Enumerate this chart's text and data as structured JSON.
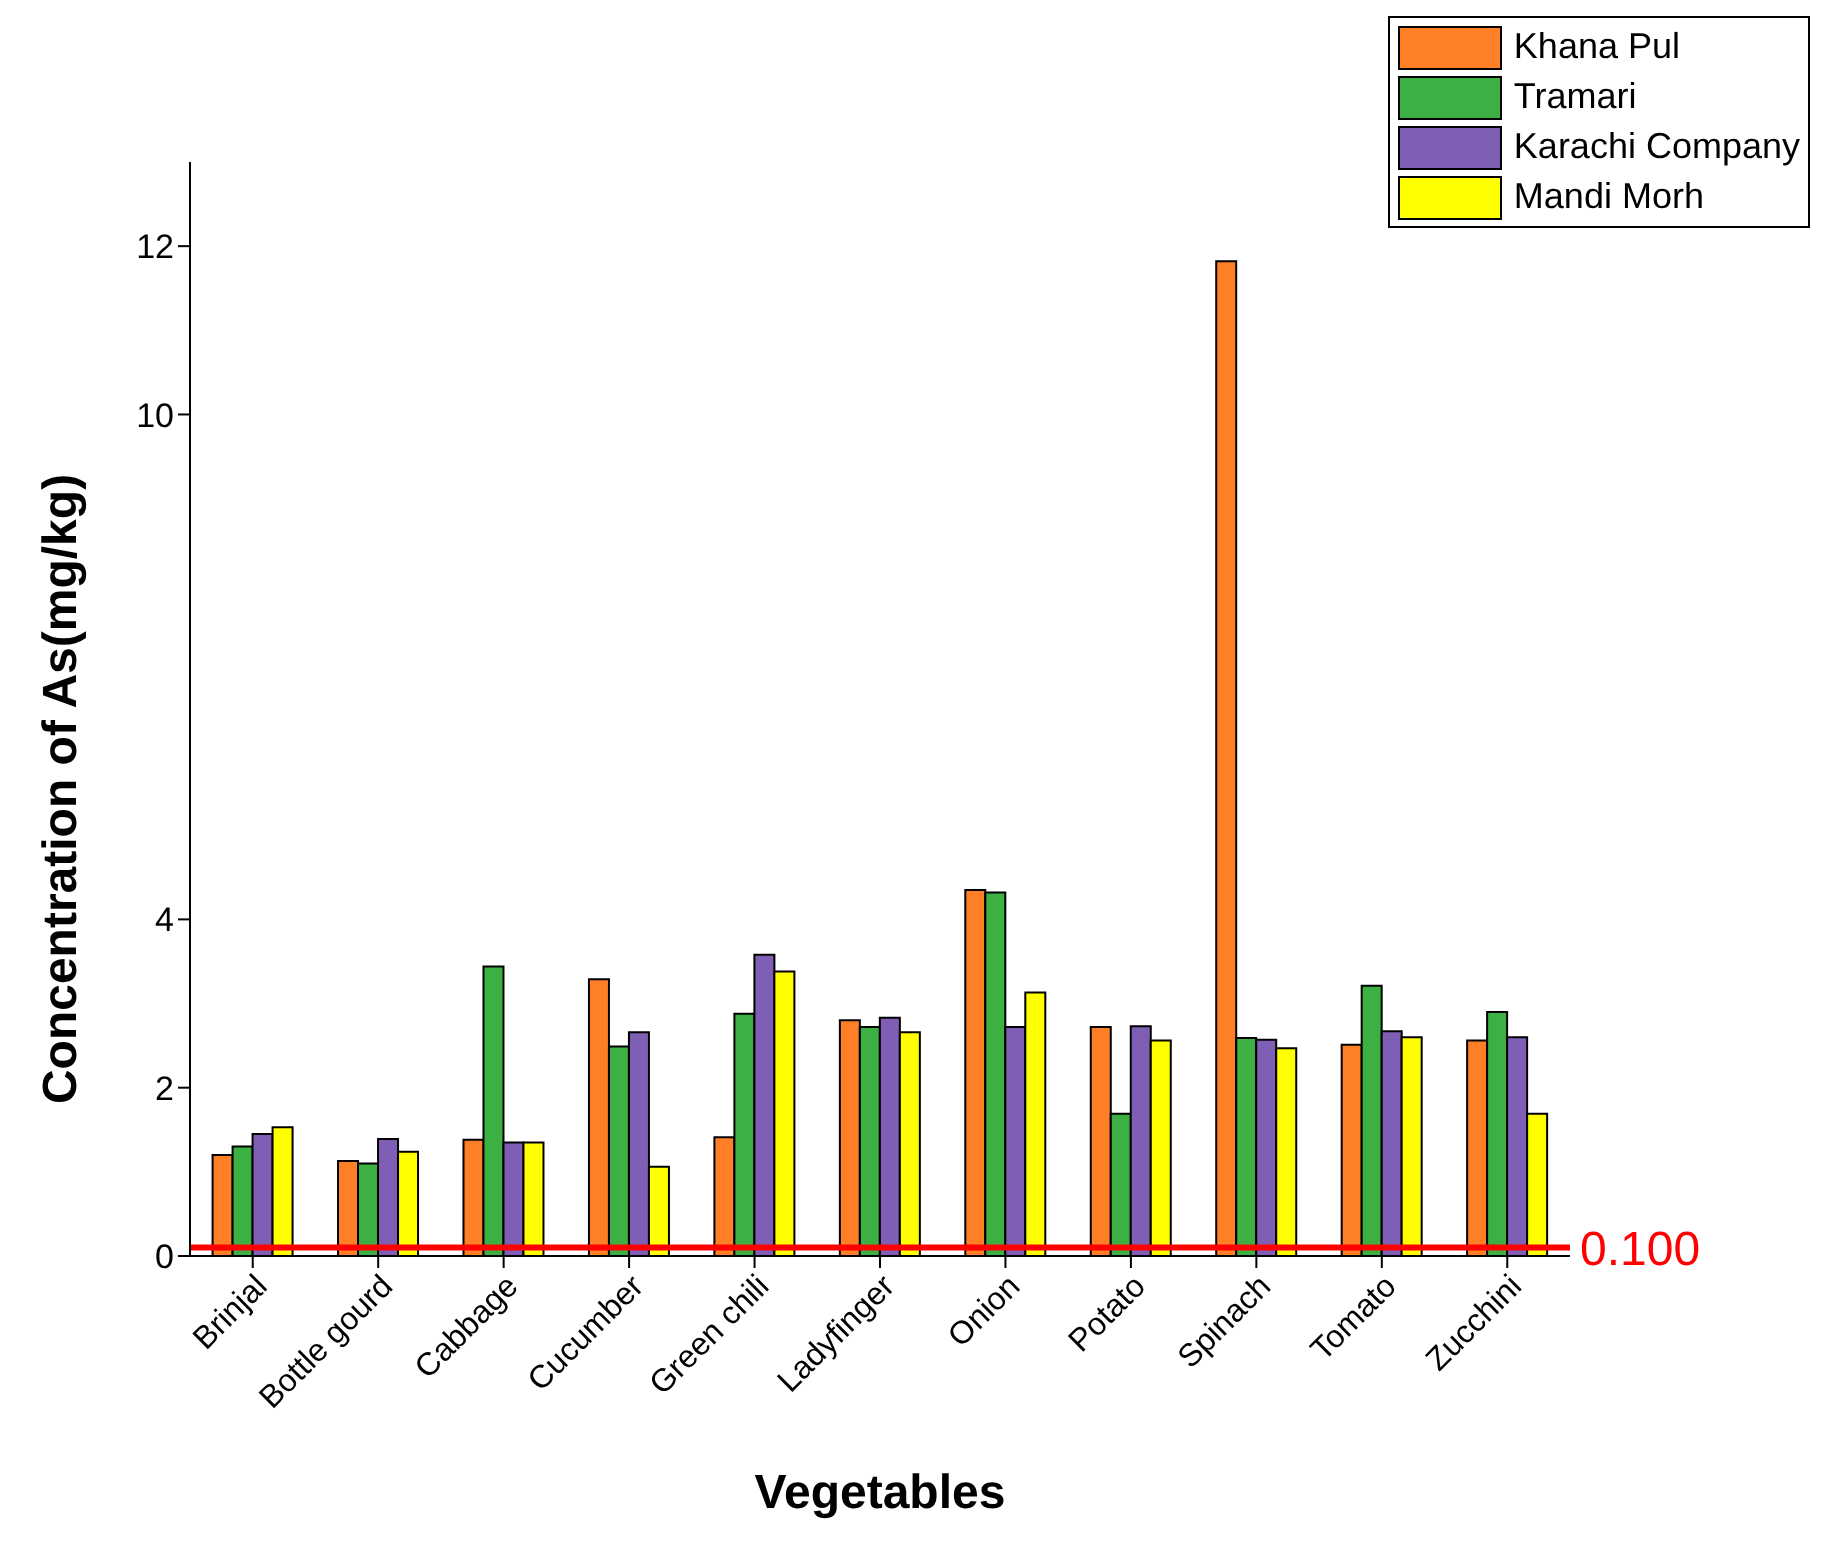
{
  "chart_data": {
    "type": "bar",
    "xlabel": "Vegetables",
    "ylabel": "Concentration of As(mg/kg)",
    "categories": [
      "Brinjal",
      "Bottle gourd",
      "Cabbage",
      "Cucumber",
      "Green chili",
      "Ladyfinger",
      "Onion",
      "Potato",
      "Spinach",
      "Tomato",
      "Zucchini"
    ],
    "series": [
      {
        "name": "Khana Pul",
        "color": "#ff7f27",
        "values": [
          1.2,
          1.13,
          1.38,
          3.29,
          1.41,
          2.8,
          4.35,
          2.72,
          11.82,
          2.51,
          2.56
        ]
      },
      {
        "name": "Tramari",
        "color": "#3cb043",
        "values": [
          1.3,
          1.1,
          3.44,
          2.49,
          2.88,
          2.72,
          4.32,
          1.69,
          2.59,
          3.21,
          2.9
        ]
      },
      {
        "name": "Karachi Company",
        "color": "#7f5fb5",
        "values": [
          1.45,
          1.39,
          1.35,
          2.66,
          3.58,
          2.83,
          2.72,
          2.73,
          2.57,
          2.67,
          2.6
        ]
      },
      {
        "name": "Mandi Morh",
        "color": "#ffff00",
        "values": [
          1.53,
          1.24,
          1.35,
          1.06,
          3.38,
          2.66,
          3.13,
          2.56,
          2.47,
          2.6,
          1.69
        ]
      }
    ],
    "ylim": [
      0,
      13
    ],
    "yticks": [
      0,
      2,
      4,
      10,
      12
    ],
    "ref_lines": [
      {
        "axis": "y",
        "value": 0.1,
        "label": "0.100",
        "color": "#ff0000"
      }
    ],
    "grid": false,
    "legend": "top right"
  }
}
